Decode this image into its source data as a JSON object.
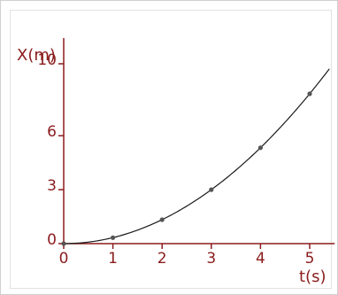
{
  "chart_data": {
    "type": "line",
    "title": "",
    "xlabel": "t(s)",
    "ylabel": "X(m)",
    "xlim": [
      0,
      5.4
    ],
    "ylim": [
      0,
      12
    ],
    "x_ticks": [
      {
        "value": 0,
        "label": "0"
      },
      {
        "value": 1,
        "label": "1"
      },
      {
        "value": 2,
        "label": "2"
      },
      {
        "value": 3,
        "label": "3"
      },
      {
        "value": 4,
        "label": "4"
      },
      {
        "value": 5,
        "label": "5"
      }
    ],
    "y_ticks": [
      {
        "value": 0,
        "label": "0"
      },
      {
        "value": 3,
        "label": "3"
      },
      {
        "value": 6,
        "label": "6"
      },
      {
        "value": 10,
        "label": "10"
      }
    ],
    "grid": false,
    "series": [
      {
        "x": [
          0,
          1,
          2,
          3,
          4,
          5
        ],
        "y": [
          0,
          0.33,
          1.33,
          3.0,
          5.33,
          8.33
        ],
        "markers": true,
        "line": "smooth",
        "extends_to_x": 5.4
      }
    ],
    "colors": {
      "axis": "#8b1c1c",
      "curve": "#1a1a1a",
      "marker": "#555555"
    }
  }
}
